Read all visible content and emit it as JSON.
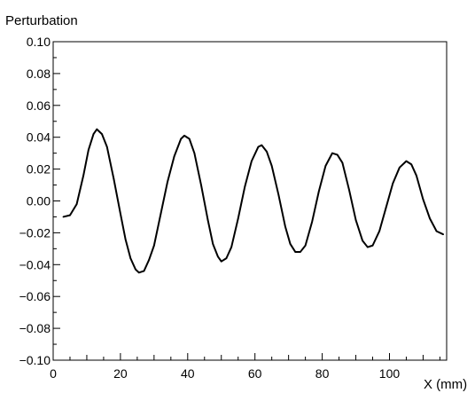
{
  "chart_data": {
    "type": "line",
    "title": "",
    "ylabel": "Perturbation",
    "xlabel": "X (mm)",
    "xlim": [
      0,
      117
    ],
    "ylim": [
      -0.1,
      0.1
    ],
    "xticks": [
      0,
      20,
      40,
      60,
      80,
      100
    ],
    "xtick_labels": [
      "0",
      "20",
      "40",
      "60",
      "80",
      "100"
    ],
    "yticks": [
      0.1,
      0.08,
      0.06,
      0.04,
      0.02,
      0.0,
      -0.02,
      -0.04,
      -0.06,
      -0.08,
      -0.1
    ],
    "ytick_labels": [
      "0.10",
      "0.08",
      "0.06",
      "0.04",
      "0.02",
      "0.00",
      "−0.02",
      "−0.04",
      "−0.06",
      "−0.08",
      "−0.10"
    ],
    "grid": false,
    "line_color": "#000000",
    "series": [
      {
        "x": [
          3,
          5,
          7,
          9,
          10.5,
          12,
          13,
          14.5,
          16,
          18,
          20,
          21.5,
          23,
          24.5,
          25.5,
          27,
          28.5,
          30,
          32,
          34,
          36,
          38,
          39,
          40.5,
          42,
          44,
          46,
          47.5,
          49,
          50,
          51.5,
          53,
          55,
          57,
          59,
          61,
          62,
          63.5,
          65,
          67,
          69,
          70.5,
          72,
          73.5,
          75,
          77,
          79,
          81,
          83,
          84.5,
          86,
          88,
          90,
          92,
          93.5,
          95,
          97,
          99,
          101,
          103,
          105,
          106.5,
          108,
          110,
          112,
          114,
          116
        ],
        "y": [
          -0.01,
          -0.009,
          -0.002,
          0.016,
          0.032,
          0.042,
          0.045,
          0.042,
          0.034,
          0.014,
          -0.008,
          -0.024,
          -0.036,
          -0.043,
          -0.045,
          -0.044,
          -0.037,
          -0.028,
          -0.008,
          0.012,
          0.028,
          0.039,
          0.041,
          0.039,
          0.03,
          0.01,
          -0.012,
          -0.027,
          -0.035,
          -0.038,
          -0.036,
          -0.029,
          -0.011,
          0.009,
          0.025,
          0.034,
          0.035,
          0.031,
          0.022,
          0.004,
          -0.016,
          -0.027,
          -0.032,
          -0.032,
          -0.028,
          -0.013,
          0.006,
          0.022,
          0.03,
          0.029,
          0.024,
          0.007,
          -0.012,
          -0.025,
          -0.029,
          -0.028,
          -0.019,
          -0.004,
          0.011,
          0.021,
          0.025,
          0.023,
          0.016,
          0.001,
          -0.011,
          -0.019,
          -0.021
        ]
      }
    ]
  }
}
